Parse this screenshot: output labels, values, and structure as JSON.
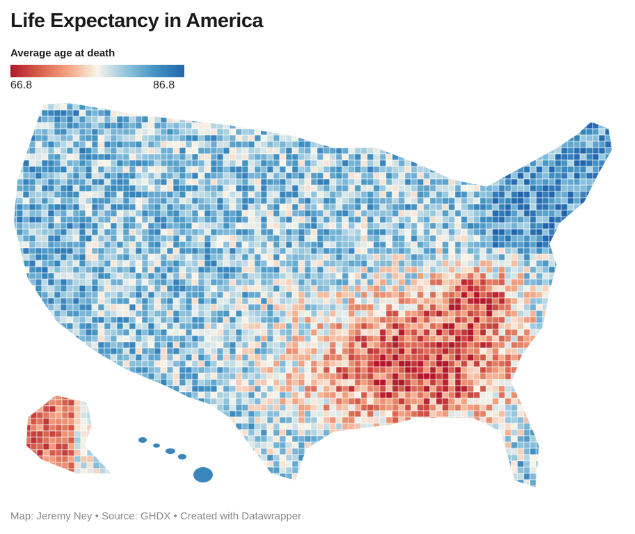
{
  "title": "Life Expectancy in America",
  "legend": {
    "title": "Average age at death",
    "min_label": "66.8",
    "max_label": "86.8",
    "min": 66.8,
    "max": 86.8,
    "colors": [
      "#b2182b",
      "#d6604d",
      "#f4a582",
      "#f7f4ea",
      "#92c5de",
      "#4393c3",
      "#2166ac"
    ]
  },
  "source": "Map: Jeremy Ney • Source: GHDX • Created with Datawrapper"
}
